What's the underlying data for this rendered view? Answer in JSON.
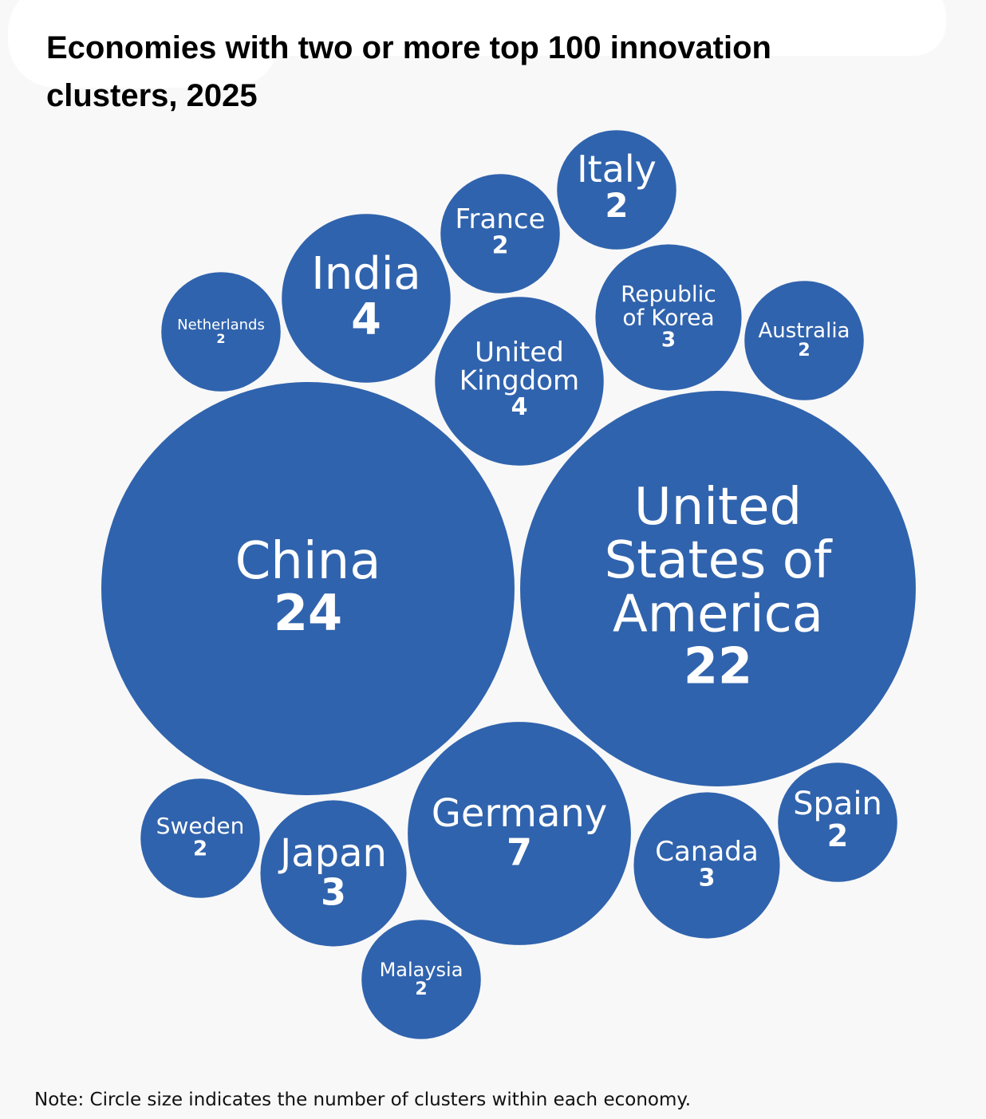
{
  "chart_data": {
    "type": "bubble",
    "title": "Economies with two or more top 100 innovation clusters, 2025",
    "note": "Note: Circle size indicates the number of clusters within each economy.",
    "color": "#3063ad",
    "items": [
      {
        "name": "China",
        "value": 24
      },
      {
        "name": "United States of America",
        "value": 22
      },
      {
        "name": "Germany",
        "value": 7
      },
      {
        "name": "India",
        "value": 4
      },
      {
        "name": "United Kingdom",
        "value": 4
      },
      {
        "name": "Republic of Korea",
        "value": 3
      },
      {
        "name": "Japan",
        "value": 3
      },
      {
        "name": "Canada",
        "value": 3
      },
      {
        "name": "Netherlands",
        "value": 2
      },
      {
        "name": "France",
        "value": 2
      },
      {
        "name": "Italy",
        "value": 2
      },
      {
        "name": "Australia",
        "value": 2
      },
      {
        "name": "Sweden",
        "value": 2
      },
      {
        "name": "Spain",
        "value": 2
      },
      {
        "name": "Malaysia",
        "value": 2
      }
    ]
  }
}
